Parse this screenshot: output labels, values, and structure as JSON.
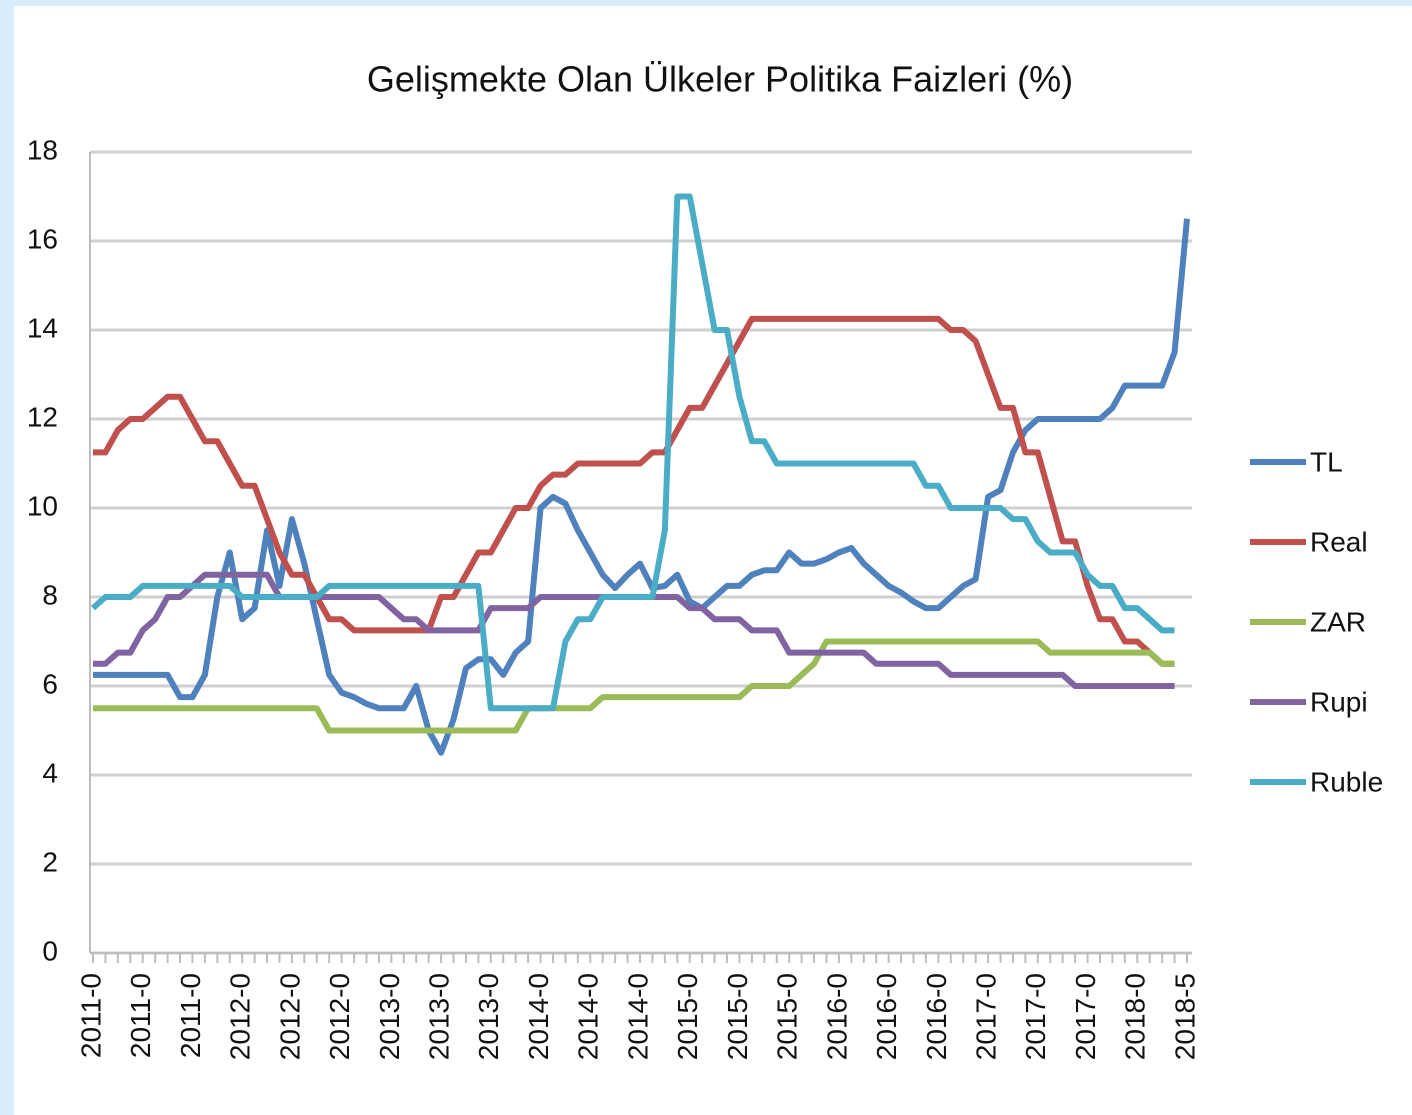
{
  "chart_data": {
    "type": "line",
    "title": "Gelişmekte Olan Ülkeler Politika Faizleri (%)",
    "categories": [
      "2011-0",
      null,
      null,
      null,
      "2011-0",
      null,
      null,
      null,
      "2011-0",
      null,
      null,
      null,
      "2012-0",
      null,
      null,
      null,
      "2012-0",
      null,
      null,
      null,
      "2012-0",
      null,
      null,
      null,
      "2013-0",
      null,
      null,
      null,
      "2013-0",
      null,
      null,
      null,
      "2013-0",
      null,
      null,
      null,
      "2014-0",
      null,
      null,
      null,
      "2014-0",
      null,
      null,
      null,
      "2014-0",
      null,
      null,
      null,
      "2015-0",
      null,
      null,
      null,
      "2015-0",
      null,
      null,
      null,
      "2015-0",
      null,
      null,
      null,
      "2016-0",
      null,
      null,
      null,
      "2016-0",
      null,
      null,
      null,
      "2016-0",
      null,
      null,
      null,
      "2017-0",
      null,
      null,
      null,
      "2017-0",
      null,
      null,
      null,
      "2017-0",
      null,
      null,
      null,
      "2018-0",
      null,
      null,
      null,
      "2018-5"
    ],
    "series": [
      {
        "name": "TL",
        "color": "#4f81bd",
        "values": [
          6.25,
          6.25,
          6.25,
          6.25,
          6.25,
          6.25,
          6.25,
          5.75,
          5.75,
          6.25,
          8,
          9,
          7.5,
          7.75,
          9.5,
          8.25,
          9.75,
          8.75,
          7.5,
          6.25,
          5.85,
          5.75,
          5.6,
          5.5,
          5.5,
          5.5,
          6,
          5,
          4.5,
          5.25,
          6.4,
          6.6,
          6.6,
          6.25,
          6.75,
          7,
          10,
          10.25,
          10.1,
          9.5,
          9,
          8.5,
          8.2,
          8.5,
          8.75,
          8.2,
          8.25,
          8.5,
          7.9,
          7.75,
          8,
          8.25,
          8.25,
          8.5,
          8.6,
          8.6,
          9,
          8.75,
          8.75,
          8.85,
          9,
          9.1,
          8.75,
          8.5,
          8.25,
          8.1,
          7.9,
          7.75,
          7.75,
          8,
          8.25,
          8.4,
          10.25,
          10.4,
          11.25,
          11.75,
          12,
          12,
          12,
          12,
          12,
          12,
          12.25,
          12.75,
          12.75,
          12.75,
          12.75,
          13.5,
          16.5
        ]
      },
      {
        "name": "Real",
        "color": "#c0504d",
        "values": [
          11.25,
          11.25,
          11.75,
          12,
          12,
          12.25,
          12.5,
          12.5,
          12,
          11.5,
          11.5,
          11,
          10.5,
          10.5,
          9.75,
          9,
          8.5,
          8.5,
          8,
          7.5,
          7.5,
          7.25,
          7.25,
          7.25,
          7.25,
          7.25,
          7.25,
          7.25,
          8,
          8,
          8.5,
          9,
          9,
          9.5,
          10,
          10,
          10.5,
          10.75,
          10.75,
          11,
          11,
          11,
          11,
          11,
          11,
          11.25,
          11.25,
          11.75,
          12.25,
          12.25,
          12.75,
          13.25,
          13.75,
          14.25,
          14.25,
          14.25,
          14.25,
          14.25,
          14.25,
          14.25,
          14.25,
          14.25,
          14.25,
          14.25,
          14.25,
          14.25,
          14.25,
          14.25,
          14.25,
          14,
          14,
          13.75,
          13,
          12.25,
          12.25,
          11.25,
          11.25,
          10.25,
          9.25,
          9.25,
          8.25,
          7.5,
          7.5,
          7,
          7,
          6.75,
          6.5,
          6.5,
          null
        ]
      },
      {
        "name": "ZAR",
        "color": "#9bbb59",
        "values": [
          5.5,
          5.5,
          5.5,
          5.5,
          5.5,
          5.5,
          5.5,
          5.5,
          5.5,
          5.5,
          5.5,
          5.5,
          5.5,
          5.5,
          5.5,
          5.5,
          5.5,
          5.5,
          5.5,
          5,
          5,
          5,
          5,
          5,
          5,
          5,
          5,
          5,
          5,
          5,
          5,
          5,
          5,
          5,
          5,
          5.5,
          5.5,
          5.5,
          5.5,
          5.5,
          5.5,
          5.75,
          5.75,
          5.75,
          5.75,
          5.75,
          5.75,
          5.75,
          5.75,
          5.75,
          5.75,
          5.75,
          5.75,
          6,
          6,
          6,
          6,
          6.25,
          6.5,
          7,
          7,
          7,
          7,
          7,
          7,
          7,
          7,
          7,
          7,
          7,
          7,
          7,
          7,
          7,
          7,
          7,
          7,
          6.75,
          6.75,
          6.75,
          6.75,
          6.75,
          6.75,
          6.75,
          6.75,
          6.75,
          6.5,
          6.5,
          null
        ]
      },
      {
        "name": "Rupi",
        "color": "#8064a2",
        "values": [
          6.5,
          6.5,
          6.75,
          6.75,
          7.25,
          7.5,
          8,
          8,
          8.25,
          8.5,
          8.5,
          8.5,
          8.5,
          8.5,
          8.5,
          8,
          8,
          8,
          8,
          8,
          8,
          8,
          8,
          8,
          7.75,
          7.5,
          7.5,
          7.25,
          7.25,
          7.25,
          7.25,
          7.25,
          7.75,
          7.75,
          7.75,
          7.75,
          8,
          8,
          8,
          8,
          8,
          8,
          8,
          8,
          8,
          8,
          8,
          8,
          7.75,
          7.75,
          7.5,
          7.5,
          7.5,
          7.25,
          7.25,
          7.25,
          6.75,
          6.75,
          6.75,
          6.75,
          6.75,
          6.75,
          6.75,
          6.5,
          6.5,
          6.5,
          6.5,
          6.5,
          6.5,
          6.25,
          6.25,
          6.25,
          6.25,
          6.25,
          6.25,
          6.25,
          6.25,
          6.25,
          6.25,
          6,
          6,
          6,
          6,
          6,
          6,
          6,
          6,
          6,
          null
        ]
      },
      {
        "name": "Ruble",
        "color": "#4bacc6",
        "values": [
          7.75,
          8,
          8,
          8,
          8.25,
          8.25,
          8.25,
          8.25,
          8.25,
          8.25,
          8.25,
          8.25,
          8,
          8,
          8,
          8,
          8,
          8,
          8,
          8.25,
          8.25,
          8.25,
          8.25,
          8.25,
          8.25,
          8.25,
          8.25,
          8.25,
          8.25,
          8.25,
          8.25,
          8.25,
          5.5,
          5.5,
          5.5,
          5.5,
          5.5,
          5.5,
          7,
          7.5,
          7.5,
          8,
          8,
          8,
          8,
          8,
          9.5,
          17,
          17,
          15.5,
          14,
          14,
          12.5,
          11.5,
          11.5,
          11,
          11,
          11,
          11,
          11,
          11,
          11,
          11,
          11,
          11,
          11,
          11,
          10.5,
          10.5,
          10,
          10,
          10,
          10,
          10,
          9.75,
          9.75,
          9.25,
          9,
          9,
          9,
          8.5,
          8.25,
          8.25,
          7.75,
          7.75,
          7.5,
          7.25,
          7.25,
          null
        ]
      }
    ],
    "ylim": [
      0,
      18
    ],
    "yticks": [
      0,
      2,
      4,
      6,
      8,
      10,
      12,
      14,
      16,
      18
    ],
    "grid": true,
    "legend": "right"
  }
}
